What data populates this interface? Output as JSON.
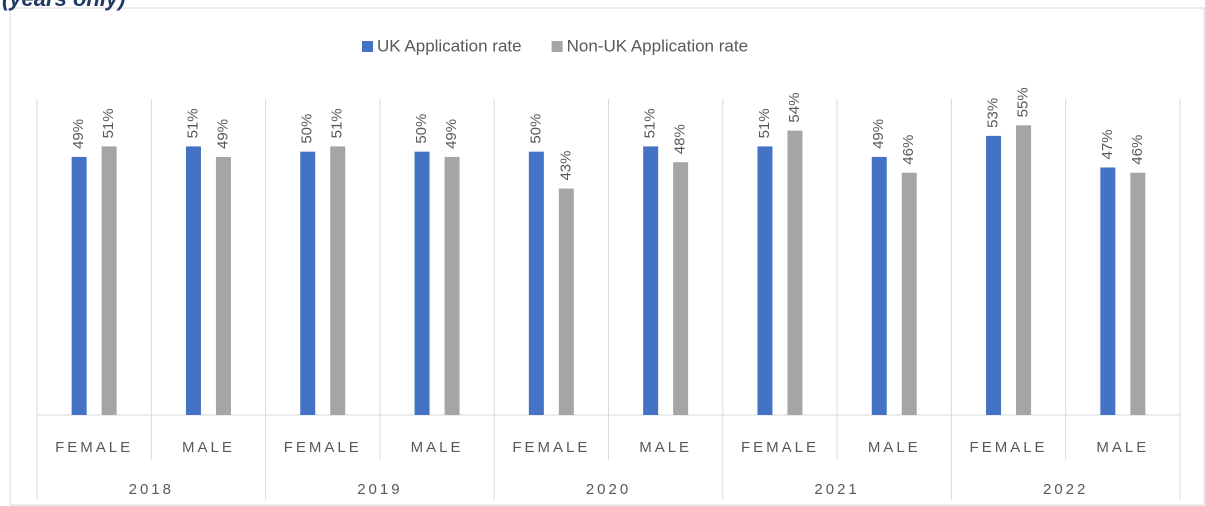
{
  "chart_data": {
    "type": "bar",
    "title": "(years only)",
    "categories": [
      "FEMALE",
      "MALE",
      "FEMALE",
      "MALE",
      "FEMALE",
      "MALE",
      "FEMALE",
      "MALE",
      "FEMALE",
      "MALE"
    ],
    "groups": [
      "2018",
      "2019",
      "2020",
      "2021",
      "2022"
    ],
    "series": [
      {
        "name": "UK Application rate",
        "color": "#4472c4",
        "values": [
          49,
          51,
          50,
          50,
          50,
          51,
          51,
          49,
          53,
          47
        ],
        "value_labels": [
          "49%",
          "51%",
          "50%",
          "50%",
          "50%",
          "51%",
          "51%",
          "49%",
          "53%",
          "47%"
        ]
      },
      {
        "name": "Non-UK Application rate",
        "color": "#a5a5a5",
        "values": [
          51,
          49,
          51,
          49,
          43,
          48,
          54,
          46,
          55,
          46
        ],
        "value_labels": [
          "51%",
          "49%",
          "51%",
          "49%",
          "43%",
          "48%",
          "54%",
          "46%",
          "55%",
          "46%"
        ]
      }
    ],
    "ylim": [
      0,
      60
    ],
    "legend": "top"
  }
}
